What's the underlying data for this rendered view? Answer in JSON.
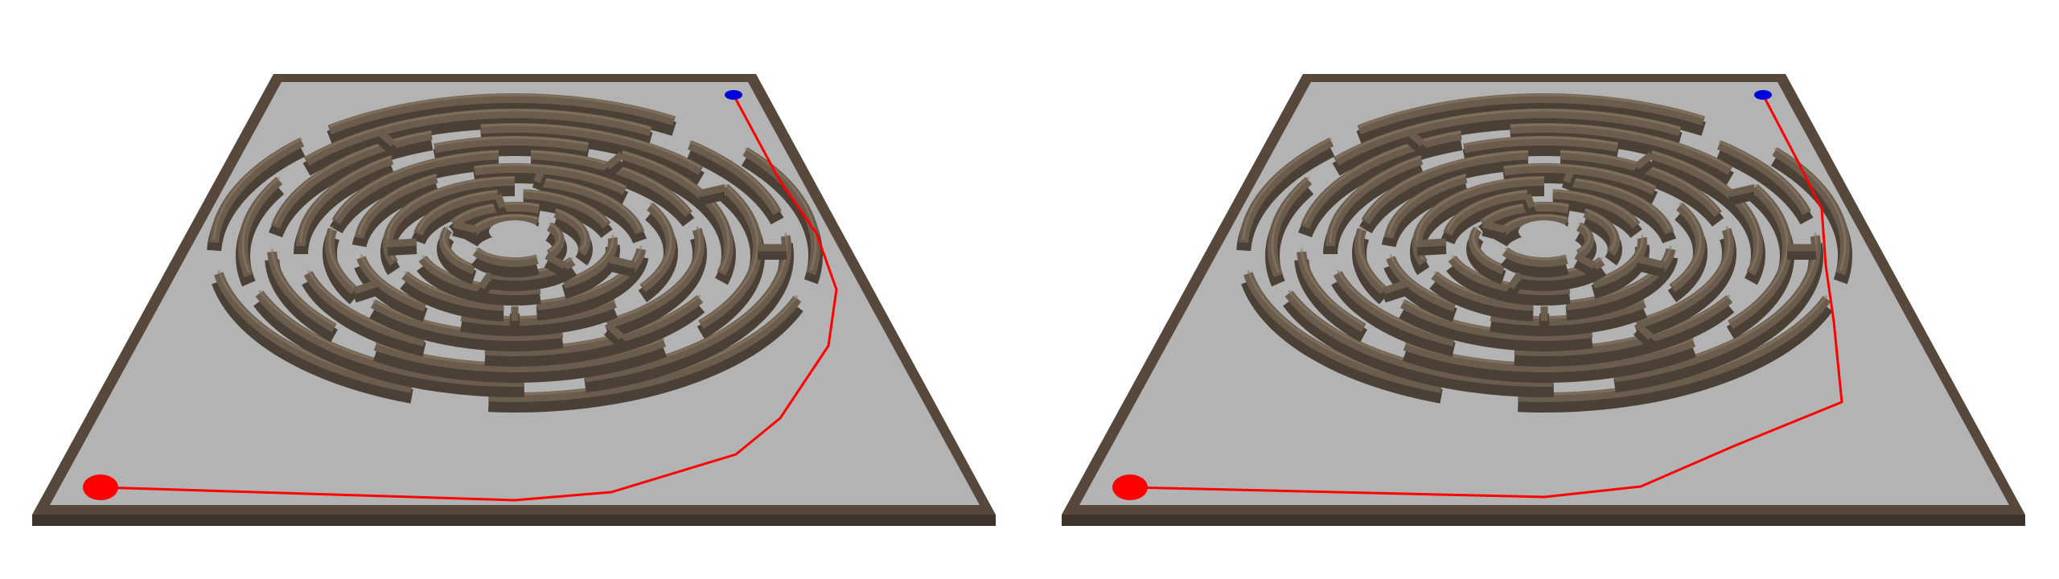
{
  "scene": {
    "description_free": true,
    "colors": {
      "background": "#ffffff",
      "floor": "#b3b3b3",
      "wall_dark": "#4a4036",
      "wall_mid": "#6b5d4e",
      "wall_light": "#8a7b68",
      "border": "#56493c",
      "path": "#ff0000",
      "start_marker": "#ff0000",
      "goal_marker": "#0000dd"
    }
  },
  "panels": [
    {
      "id": "left",
      "path_variant": "a",
      "markers": {
        "start": "start-marker",
        "goal": "goal-marker"
      }
    },
    {
      "id": "right",
      "path_variant": "b",
      "markers": {
        "start": "start-marker",
        "goal": "goal-marker"
      }
    }
  ]
}
